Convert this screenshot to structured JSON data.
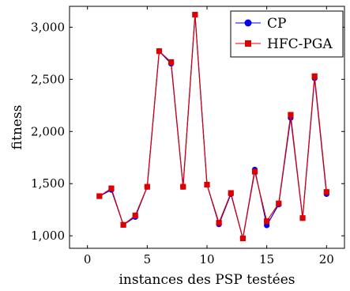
{
  "chart_data": {
    "type": "line",
    "title": "",
    "xlabel": "instances des PSP testées",
    "ylabel": "fitness",
    "xlim": [
      -1.5,
      21.5
    ],
    "ylim": [
      880,
      3200
    ],
    "xticks": [
      0,
      5,
      10,
      15,
      20
    ],
    "xtick_labels": [
      "0",
      "5",
      "10",
      "15",
      "20"
    ],
    "yticks": [
      1000,
      1500,
      2000,
      2500,
      3000
    ],
    "ytick_labels": [
      "1,000",
      "1,500",
      "2,000",
      "2,500",
      "3,000"
    ],
    "grid": false,
    "legend_position": "top-right",
    "x": [
      1,
      2,
      3,
      4,
      5,
      6,
      7,
      8,
      9,
      10,
      11,
      12,
      13,
      14,
      15,
      16,
      17,
      18,
      19,
      20
    ],
    "series": [
      {
        "name": "CP",
        "color": "#0000ee",
        "marker": "circle",
        "values": [
          1380,
          1440,
          1105,
          1180,
          1470,
          2770,
          2650,
          1470,
          3120,
          1490,
          1110,
          1400,
          975,
          1635,
          1100,
          1300,
          2130,
          1170,
          2510,
          1400
        ]
      },
      {
        "name": "HFC-PGA",
        "color": "#dd0000",
        "marker": "square",
        "values": [
          1380,
          1455,
          1105,
          1195,
          1470,
          2770,
          2665,
          1470,
          3120,
          1490,
          1125,
          1410,
          975,
          1615,
          1140,
          1310,
          2160,
          1170,
          2530,
          1420
        ]
      }
    ]
  }
}
